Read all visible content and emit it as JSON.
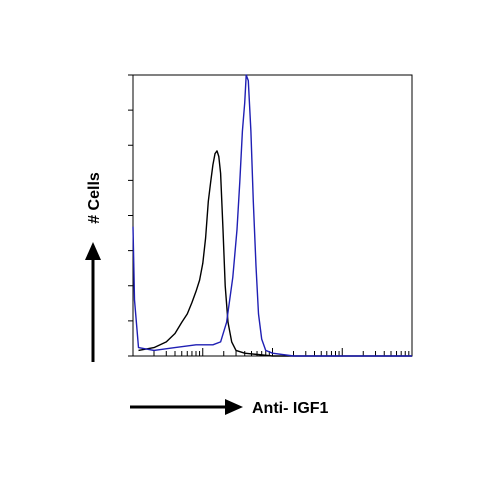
{
  "chart_data": {
    "type": "line",
    "xlabel": "Anti- IGF1",
    "ylabel": "# Cells",
    "x_scale": "log",
    "xlim": [
      1,
      10000
    ],
    "ylim": [
      0,
      100
    ],
    "grid": false,
    "legend": "none",
    "series": [
      {
        "color": "#000000",
        "points": [
          [
            1.2,
            2
          ],
          [
            2,
            3
          ],
          [
            3,
            5
          ],
          [
            4,
            8
          ],
          [
            5,
            12
          ],
          [
            6,
            15
          ],
          [
            7,
            19
          ],
          [
            8,
            23
          ],
          [
            9,
            27
          ],
          [
            10,
            33
          ],
          [
            11,
            42
          ],
          [
            12,
            55
          ],
          [
            13,
            62
          ],
          [
            14,
            68
          ],
          [
            15,
            72
          ],
          [
            16,
            73
          ],
          [
            17,
            71
          ],
          [
            18,
            65
          ],
          [
            19.5,
            45
          ],
          [
            21,
            25
          ],
          [
            23,
            12
          ],
          [
            26,
            5
          ],
          [
            30,
            2
          ],
          [
            40,
            1
          ],
          [
            100,
            0
          ],
          [
            10000,
            0
          ]
        ]
      },
      {
        "color": "#1f1fb4",
        "points": [
          [
            1,
            46
          ],
          [
            1.05,
            20
          ],
          [
            1.2,
            3
          ],
          [
            2,
            2
          ],
          [
            4,
            3
          ],
          [
            8,
            4
          ],
          [
            14,
            4
          ],
          [
            18,
            5
          ],
          [
            22,
            12
          ],
          [
            27,
            28
          ],
          [
            31,
            45
          ],
          [
            34,
            62
          ],
          [
            37,
            80
          ],
          [
            40,
            90
          ],
          [
            42,
            100
          ],
          [
            45,
            98
          ],
          [
            49,
            80
          ],
          [
            53,
            55
          ],
          [
            58,
            32
          ],
          [
            63,
            15
          ],
          [
            70,
            6
          ],
          [
            80,
            2
          ],
          [
            100,
            1
          ],
          [
            200,
            0
          ],
          [
            10000,
            0
          ]
        ]
      }
    ]
  }
}
